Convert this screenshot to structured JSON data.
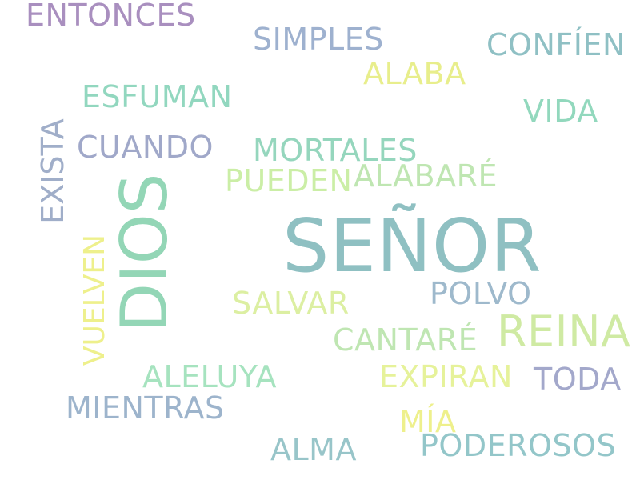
{
  "words": [
    {
      "text": "SEÑOR",
      "color": "#8fc0c2"
    },
    {
      "text": "DIOS",
      "color": "#93d6b6"
    },
    {
      "text": "REINA",
      "color": "#cfeaa3"
    },
    {
      "text": "EXISTA",
      "color": "#a0aec9"
    },
    {
      "text": "VUELVEN",
      "color": "#eef08c"
    },
    {
      "text": "ENTONCES",
      "color": "#a98fbf"
    },
    {
      "text": "SIMPLES",
      "color": "#9eb1cf"
    },
    {
      "text": "CONFÍEN",
      "color": "#8fc0c4"
    },
    {
      "text": "ALABA",
      "color": "#e8ee8c"
    },
    {
      "text": "ESFUMAN",
      "color": "#92d7bf"
    },
    {
      "text": "VIDA",
      "color": "#92d8bd"
    },
    {
      "text": "CUANDO",
      "color": "#a0a8c9"
    },
    {
      "text": "MORTALES",
      "color": "#95d6bd"
    },
    {
      "text": "PUEDEN",
      "color": "#cbeea6"
    },
    {
      "text": "ALABARÉ",
      "color": "#bfe6b2"
    },
    {
      "text": "SALVAR",
      "color": "#dcefa2"
    },
    {
      "text": "POLVO",
      "color": "#9eb9cc"
    },
    {
      "text": "CANTARÉ",
      "color": "#bfe6b2"
    },
    {
      "text": "ALELUYA",
      "color": "#a6e3bf"
    },
    {
      "text": "EXPIRAN",
      "color": "#e6f29a"
    },
    {
      "text": "TODA",
      "color": "#a3a8cb"
    },
    {
      "text": "MIENTRAS",
      "color": "#9db4cc"
    },
    {
      "text": "MÍA",
      "color": "#eef08c"
    },
    {
      "text": "ALMA",
      "color": "#98c5c9"
    },
    {
      "text": "PODEROSOS",
      "color": "#93c6c9"
    }
  ]
}
